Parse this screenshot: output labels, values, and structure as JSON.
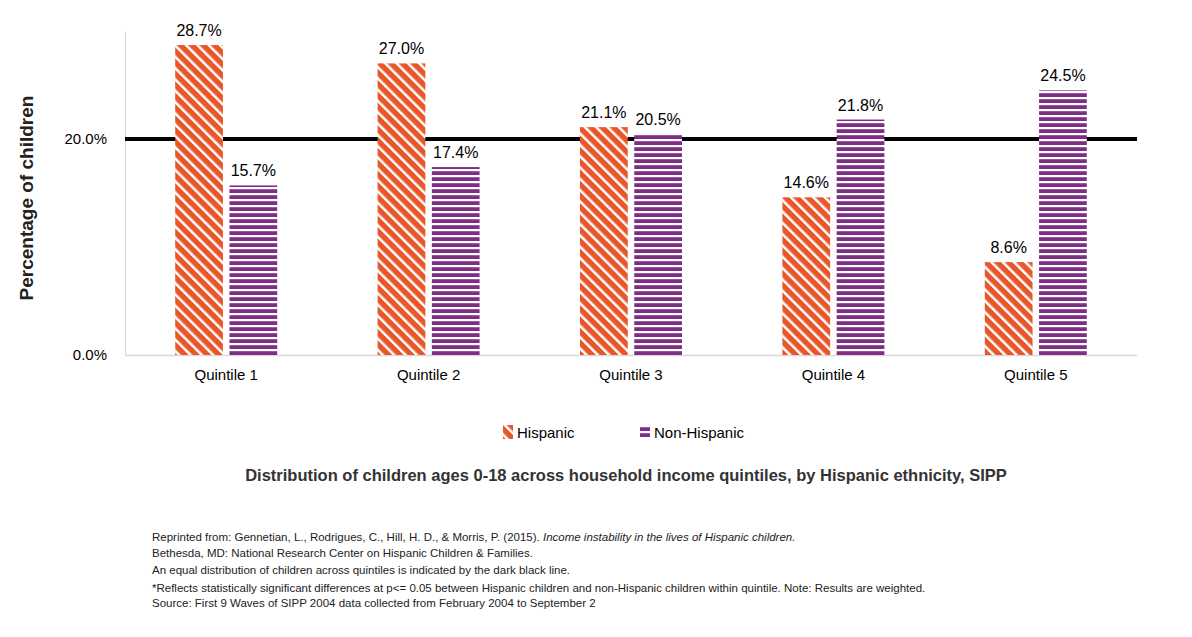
{
  "chart_data": {
    "type": "bar",
    "title": "Distribution of children ages 0-18 across household income quintiles, by Hispanic ethnicity, SIPP",
    "y_label": "Percentage of children",
    "categories": [
      "Quintile 1",
      "Quintile 2",
      "Quintile 3",
      "Quintile 4",
      "Quintile 5"
    ],
    "series": [
      {
        "name": "Hispanic",
        "color": "#e8562a",
        "values": [
          28.7,
          27.0,
          21.1,
          14.6,
          8.6
        ],
        "value_labels": [
          "28.7%",
          "27.0%",
          "21.1%",
          "14.6%",
          "8.6%"
        ]
      },
      {
        "name": "Non-Hispanic",
        "color": "#7e2e84",
        "values": [
          15.7,
          17.4,
          20.5,
          21.8,
          24.5
        ],
        "value_labels": [
          "15.7%",
          "17.4%",
          "20.5%",
          "21.8%",
          "24.5%"
        ]
      }
    ],
    "ylim": [
      0,
      30
    ],
    "yticks": [
      {
        "value": 0,
        "label": "0.0%"
      },
      {
        "value": 20,
        "label": "20.0%"
      }
    ],
    "reference_line": 20,
    "grid": false,
    "data_labels": true,
    "legend": "bottom",
    "notes": [
      [
        "Reprinted from: Gennetian, L., Rodrigues, C., Hill, H. D., & Morris, P. (2015). ",
        "Income instability in the lives of Hispanic children."
      ],
      [
        "Bethesda, MD: National Research Center on Hispanic Children & Families."
      ],
      [
        "An equal distribution of children across quintiles is indicated by the dark black line."
      ],
      [
        "*Reflects statistically significant differences at p<= 0.05 between Hispanic children and non-Hispanic children within quintile. Note: Results are weighted."
      ],
      [
        "Source: First 9 Waves of SIPP 2004 data collected from February 2004 to September 2"
      ]
    ]
  }
}
